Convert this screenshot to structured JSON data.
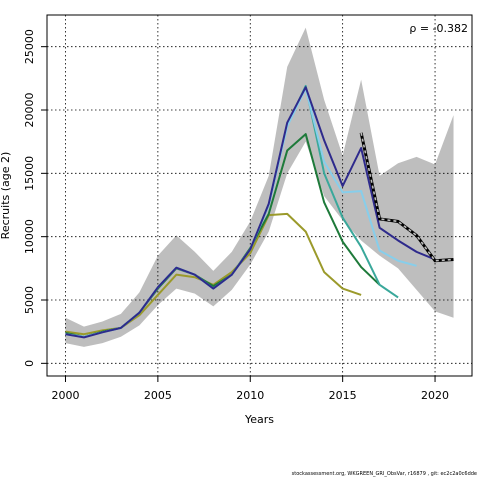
{
  "chart_data": {
    "type": "line",
    "xlabel": "Years",
    "ylabel": "Recruits (age 2)",
    "xlim": [
      1999,
      2022
    ],
    "ylim": [
      -1000,
      27500
    ],
    "xticks": [
      2000,
      2005,
      2010,
      2015,
      2020
    ],
    "yticks": [
      0,
      5000,
      10000,
      15000,
      20000,
      25000
    ],
    "grid": true,
    "grid_style": "dotted",
    "annotation": "ρ = -0.382",
    "band": {
      "color": "#bebebe",
      "x": [
        2000,
        2001,
        2002,
        2003,
        2004,
        2005,
        2006,
        2007,
        2008,
        2009,
        2010,
        2011,
        2012,
        2013,
        2014,
        2015,
        2016,
        2017,
        2018,
        2019,
        2020,
        2021
      ],
      "upper": [
        3600,
        2900,
        3300,
        3900,
        5600,
        8500,
        10100,
        8800,
        7300,
        8800,
        11200,
        14800,
        23400,
        26500,
        20800,
        16400,
        22400,
        14800,
        15800,
        16300,
        15700,
        19600
      ],
      "lower": [
        1600,
        1300,
        1600,
        2100,
        3000,
        4600,
        5900,
        5500,
        4500,
        5800,
        7800,
        10400,
        15000,
        17500,
        13200,
        11300,
        9700,
        8500,
        7500,
        5800,
        4100,
        3600
      ]
    },
    "series": [
      {
        "color": "#000000",
        "style": "dashed-bold",
        "x": [
          2016,
          2017,
          2018,
          2019,
          2020,
          2021
        ],
        "values": [
          18200,
          11400,
          11200,
          10100,
          8100,
          8200
        ]
      },
      {
        "color": "#2e2a8c",
        "style": "solid",
        "x": [
          2000,
          2001,
          2002,
          2003,
          2004,
          2005,
          2006,
          2007,
          2008,
          2009,
          2010,
          2011,
          2012,
          2013,
          2014,
          2015,
          2016,
          2017,
          2018,
          2019,
          2020
        ],
        "values": [
          2300,
          2050,
          2450,
          2800,
          4000,
          6000,
          7550,
          7000,
          5900,
          7000,
          9000,
          12600,
          19000,
          21800,
          17600,
          14000,
          17000,
          10700,
          9700,
          8800,
          8200
        ]
      },
      {
        "color": "#87ceeb",
        "style": "solid",
        "x": [
          2000,
          2001,
          2002,
          2003,
          2004,
          2005,
          2006,
          2007,
          2008,
          2009,
          2010,
          2011,
          2012,
          2013,
          2014,
          2015,
          2016,
          2017,
          2018,
          2019
        ],
        "values": [
          2300,
          2100,
          2450,
          2800,
          4000,
          6000,
          7550,
          7000,
          5900,
          7000,
          9000,
          12500,
          18700,
          21700,
          15900,
          13500,
          13600,
          8900,
          8100,
          7700
        ]
      },
      {
        "color": "#3aa89b",
        "style": "solid",
        "x": [
          2000,
          2001,
          2002,
          2003,
          2004,
          2005,
          2006,
          2007,
          2008,
          2009,
          2010,
          2011,
          2012,
          2013,
          2014,
          2015,
          2016,
          2017,
          2018
        ],
        "values": [
          2300,
          2100,
          2450,
          2800,
          4000,
          6000,
          7550,
          7000,
          5900,
          7000,
          9000,
          12500,
          18800,
          21900,
          15000,
          11500,
          9200,
          6200,
          5200
        ]
      },
      {
        "color": "#1e7a3a",
        "style": "solid",
        "x": [
          2000,
          2001,
          2002,
          2003,
          2004,
          2005,
          2006,
          2007,
          2008,
          2009,
          2010,
          2011,
          2012,
          2013,
          2014,
          2015,
          2016,
          2017
        ],
        "values": [
          2400,
          2100,
          2500,
          2800,
          4000,
          5900,
          7500,
          7000,
          6100,
          7000,
          9100,
          11800,
          16800,
          18100,
          12700,
          9600,
          7600,
          6200
        ]
      },
      {
        "color": "#9b9a2b",
        "style": "solid",
        "x": [
          2000,
          2001,
          2002,
          2003,
          2004,
          2005,
          2006,
          2007,
          2008,
          2009,
          2010,
          2011,
          2012,
          2013,
          2014,
          2015,
          2016
        ],
        "values": [
          2500,
          2300,
          2600,
          2800,
          3800,
          5400,
          7000,
          6800,
          6200,
          7200,
          8700,
          11700,
          11800,
          10400,
          7200,
          5900,
          5400
        ]
      }
    ]
  },
  "footer": "stockassessment.org, WKGREEN_GRI_ObsVar, r16879 , git: ec2c2a0c6dde"
}
